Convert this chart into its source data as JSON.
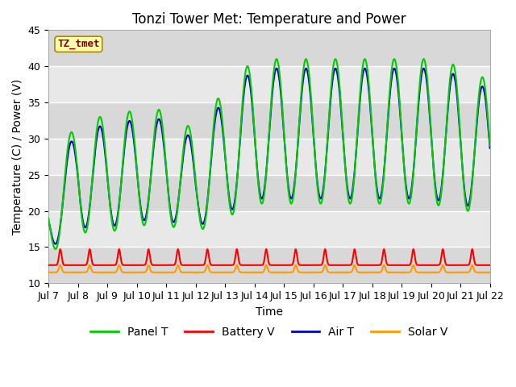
{
  "title": "Tonzi Tower Met: Temperature and Power",
  "xlabel": "Time",
  "ylabel": "Temperature (C) / Power (V)",
  "ylim": [
    10,
    45
  ],
  "xlim": [
    0,
    15
  ],
  "tick_labels": [
    "Jul 7",
    "Jul 8",
    "Jul 9",
    "Jul 10",
    "Jul 11",
    "Jul 12",
    "Jul 13",
    "Jul 14",
    "Jul 15",
    "Jul 16",
    "Jul 17",
    "Jul 18",
    "Jul 19",
    "Jul 20",
    "Jul 21",
    "Jul 22"
  ],
  "yticks": [
    10,
    15,
    20,
    25,
    30,
    35,
    40,
    45
  ],
  "label_tag": "TZ_tmet",
  "label_tag_color": "#8B0000",
  "label_tag_bg": "#FFFFAA",
  "colors": {
    "panel_t": "#00CC00",
    "battery_v": "#FF0000",
    "air_t": "#0000CC",
    "solar_v": "#FF9900"
  },
  "background_color": "#FFFFFF",
  "plot_bg_color": "#E8E8E8",
  "band_colors": [
    "#D8D8D8",
    "#E8E8E8"
  ],
  "grid_color": "#FFFFFF",
  "title_fontsize": 12,
  "axis_fontsize": 10,
  "tick_fontsize": 9,
  "legend_fontsize": 10
}
